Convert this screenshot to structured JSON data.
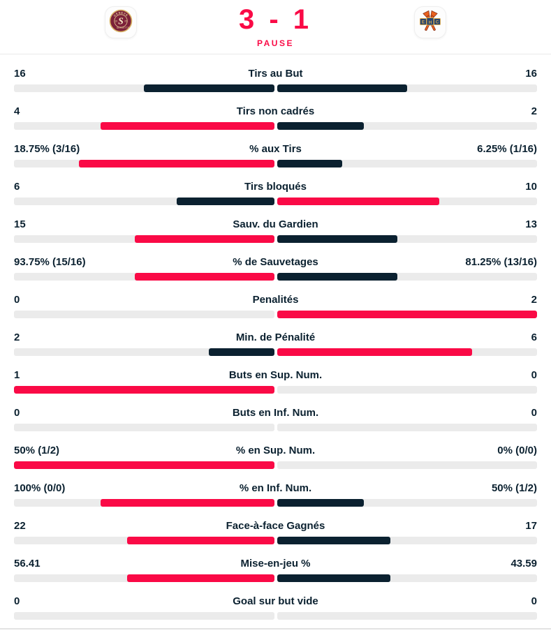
{
  "header": {
    "score": "3 - 1",
    "status": "PAUSE",
    "home_team_logo": "geneve-servette-hc-logo",
    "away_team_logo": "ehc-biel-bienne-logo"
  },
  "colors": {
    "accent_pink": "#fa0a46",
    "dark_navy": "#0b2130",
    "track_grey": "#ebebeb"
  },
  "chart_data": {
    "type": "bar",
    "orientation": "center-anchored-comparison",
    "color_rule": "leading value pink, trailing value navy, tie both navy",
    "rows": [
      {
        "label": "Tirs au But",
        "left": "16",
        "right": "16",
        "left_num": 16,
        "right_num": 16
      },
      {
        "label": "Tirs non cadrés",
        "left": "4",
        "right": "2",
        "left_num": 4,
        "right_num": 2
      },
      {
        "label": "% aux Tirs",
        "left": "18.75% (3/16)",
        "right": "6.25% (1/16)",
        "left_num": 18.75,
        "right_num": 6.25
      },
      {
        "label": "Tirs bloqués",
        "left": "6",
        "right": "10",
        "left_num": 6,
        "right_num": 10
      },
      {
        "label": "Sauv. du Gardien",
        "left": "15",
        "right": "13",
        "left_num": 15,
        "right_num": 13
      },
      {
        "label": "% de Sauvetages",
        "left": "93.75% (15/16)",
        "right": "81.25% (13/16)",
        "left_num": 93.75,
        "right_num": 81.25
      },
      {
        "label": "Penalités",
        "left": "0",
        "right": "2",
        "left_num": 0,
        "right_num": 2
      },
      {
        "label": "Min. de Pénalité",
        "left": "2",
        "right": "6",
        "left_num": 2,
        "right_num": 6
      },
      {
        "label": "Buts en Sup. Num.",
        "left": "1",
        "right": "0",
        "left_num": 1,
        "right_num": 0
      },
      {
        "label": "Buts en Inf. Num.",
        "left": "0",
        "right": "0",
        "left_num": 0,
        "right_num": 0
      },
      {
        "label": "% en Sup. Num.",
        "left": "50% (1/2)",
        "right": "0% (0/0)",
        "left_num": 50,
        "right_num": 0
      },
      {
        "label": "% en Inf. Num.",
        "left": "100% (0/0)",
        "right": "50% (1/2)",
        "left_num": 100,
        "right_num": 50
      },
      {
        "label": "Face-à-face Gagnés",
        "left": "22",
        "right": "17",
        "left_num": 22,
        "right_num": 17
      },
      {
        "label": "Mise-en-jeu %",
        "left": "56.41",
        "right": "43.59",
        "left_num": 56.41,
        "right_num": 43.59
      },
      {
        "label": "Goal sur but vide",
        "left": "0",
        "right": "0",
        "left_num": 0,
        "right_num": 0
      }
    ]
  }
}
